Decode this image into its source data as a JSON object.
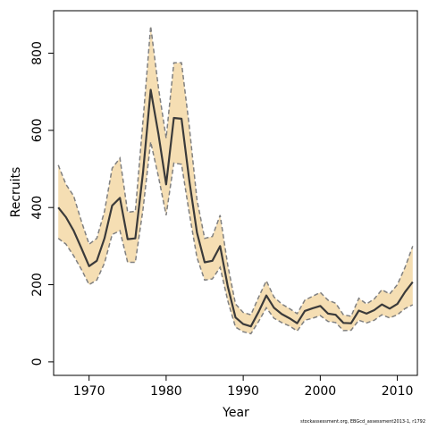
{
  "chart_data": {
    "type": "line",
    "title": "",
    "xlabel": "Year",
    "ylabel": "Recruits",
    "xlim": [
      1965.4,
      2012.6
    ],
    "ylim": [
      -35,
      910
    ],
    "xticks": [
      1970,
      1980,
      1990,
      2000,
      2010
    ],
    "yticks": [
      0,
      200,
      400,
      600,
      800
    ],
    "grid": false,
    "colors": {
      "band": "#f5deb3",
      "line": "#3a3a3a",
      "bound": "#808080"
    },
    "x": [
      1966,
      1967,
      1968,
      1969,
      1970,
      1971,
      1972,
      1973,
      1974,
      1975,
      1976,
      1977,
      1978,
      1979,
      1980,
      1981,
      1982,
      1983,
      1984,
      1985,
      1986,
      1987,
      1988,
      1989,
      1990,
      1991,
      1992,
      1993,
      1994,
      1995,
      1996,
      1997,
      1998,
      1999,
      2000,
      2001,
      2002,
      2003,
      2004,
      2005,
      2006,
      2007,
      2008,
      2009,
      2010,
      2011,
      2012
    ],
    "series": [
      {
        "role": "estimate",
        "values": [
          400,
          375,
          340,
          295,
          248,
          262,
          320,
          405,
          425,
          318,
          320,
          490,
          705,
          590,
          460,
          632,
          630,
          470,
          335,
          258,
          262,
          300,
          195,
          115,
          98,
          92,
          130,
          172,
          140,
          124,
          113,
          100,
          132,
          139,
          145,
          125,
          122,
          101,
          100,
          133,
          125,
          134,
          149,
          138,
          150,
          181,
          207
        ]
      },
      {
        "role": "upper",
        "values": [
          510,
          460,
          430,
          365,
          305,
          320,
          390,
          502,
          528,
          388,
          390,
          625,
          870,
          710,
          580,
          775,
          775,
          610,
          420,
          320,
          325,
          380,
          250,
          150,
          128,
          122,
          168,
          210,
          168,
          150,
          138,
          125,
          160,
          170,
          180,
          160,
          152,
          122,
          118,
          165,
          150,
          163,
          187,
          176,
          200,
          245,
          300
        ]
      },
      {
        "role": "lower",
        "values": [
          320,
          305,
          275,
          240,
          200,
          212,
          256,
          330,
          340,
          258,
          258,
          395,
          570,
          480,
          380,
          515,
          512,
          385,
          270,
          212,
          215,
          245,
          158,
          90,
          78,
          73,
          105,
          140,
          113,
          102,
          93,
          80,
          108,
          113,
          120,
          105,
          102,
          81,
          82,
          108,
          101,
          108,
          122,
          114,
          122,
          138,
          148
        ]
      }
    ]
  },
  "footnote": "stockassessment.org, EBGcd_assessment2013-1, r1792"
}
